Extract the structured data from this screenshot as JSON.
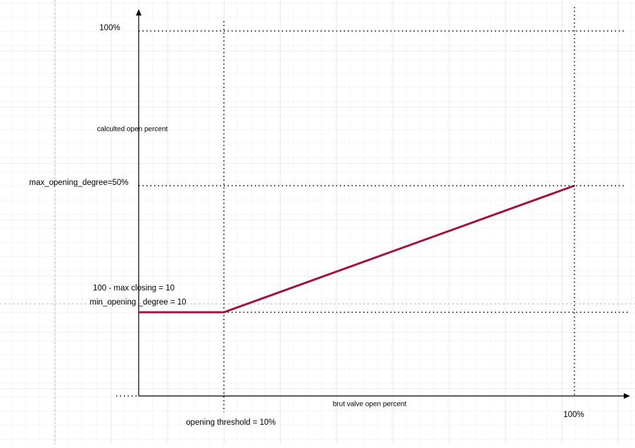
{
  "labels": {
    "y_top": "100%",
    "y_axis_title": "calculted open percent",
    "max_opening": "max_opening_degree=50%",
    "max_closing": "100 - max closing = 10",
    "min_opening": "min_opening _degree = 10",
    "x_axis_title": "brut valve open percent",
    "threshold": "opening threshold = 10%",
    "x_right": "100%"
  }
}
